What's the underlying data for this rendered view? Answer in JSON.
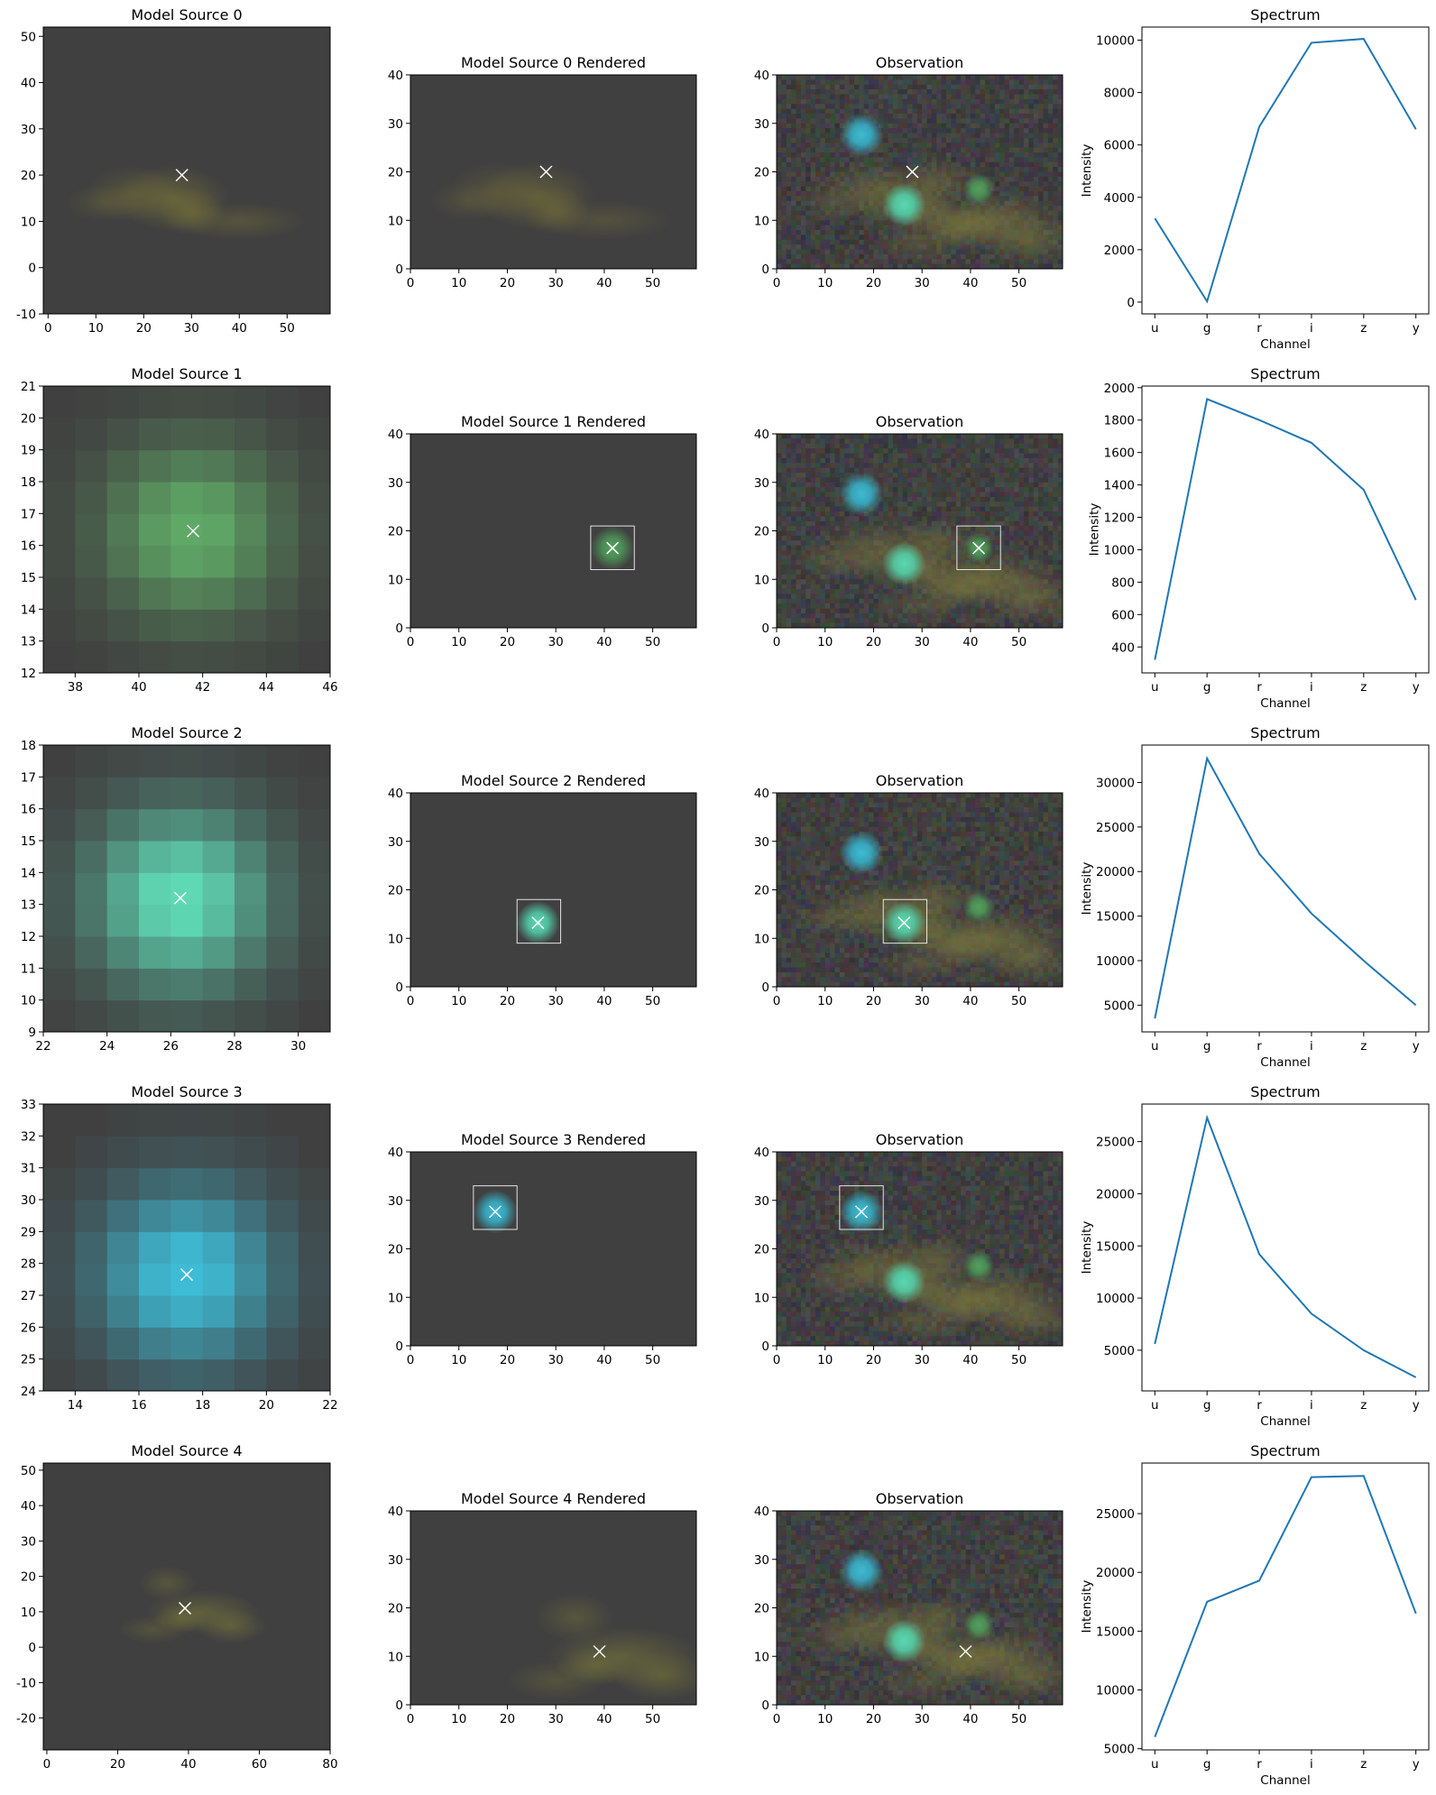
{
  "figure": {
    "background": "#ffffff",
    "image_background": "#404040",
    "marker_color": "#ffffff",
    "line_color": "#1f77b4"
  },
  "chart_data": [
    {
      "row": 0,
      "panels": [
        {
          "kind": "model",
          "type": "heatmap",
          "title": "Model Source 0",
          "xlim": [
            -1,
            59
          ],
          "ylim": [
            -10,
            52
          ],
          "xticks": [
            0,
            10,
            20,
            30,
            40,
            50
          ],
          "yticks": [
            -10,
            0,
            10,
            20,
            30,
            40,
            50
          ],
          "center": [
            28,
            20
          ],
          "color": "#807a36",
          "blob": "galaxy"
        },
        {
          "kind": "rendered",
          "type": "heatmap",
          "title": "Model Source 0 Rendered",
          "xlim": [
            0,
            59
          ],
          "ylim": [
            0,
            40
          ],
          "xticks": [
            0,
            10,
            20,
            30,
            40,
            50
          ],
          "yticks": [
            0,
            10,
            20,
            30,
            40
          ],
          "center": [
            28,
            20
          ],
          "color": "#7a7238",
          "blob": "galaxy",
          "box": null
        },
        {
          "kind": "observation",
          "type": "heatmap",
          "title": "Observation",
          "xlim": [
            0,
            59
          ],
          "ylim": [
            0,
            40
          ],
          "xticks": [
            0,
            10,
            20,
            30,
            40,
            50
          ],
          "yticks": [
            0,
            10,
            20,
            30,
            40
          ],
          "center": [
            28,
            20
          ],
          "box": null
        },
        {
          "kind": "spectrum",
          "type": "line",
          "title": "Spectrum",
          "xlabel": "Channel",
          "ylabel": "Intensity",
          "categories": [
            "u",
            "g",
            "r",
            "i",
            "z",
            "y"
          ],
          "values": [
            3200,
            30,
            6700,
            9900,
            10050,
            6600
          ],
          "ylim": [
            -450,
            10500
          ],
          "yticks": [
            0,
            2000,
            4000,
            6000,
            8000,
            10000
          ]
        }
      ]
    },
    {
      "row": 1,
      "panels": [
        {
          "kind": "model",
          "type": "heatmap",
          "title": "Model Source 1",
          "xlim": [
            37,
            46
          ],
          "ylim": [
            12,
            21
          ],
          "xticks": [
            38,
            40,
            42,
            44,
            46
          ],
          "yticks": [
            12,
            13,
            14,
            15,
            16,
            17,
            18,
            19,
            20,
            21
          ],
          "center": [
            41.7,
            16.45
          ],
          "color": "#5fa866",
          "blob": "pixels"
        },
        {
          "kind": "rendered",
          "type": "heatmap",
          "title": "Model Source 1 Rendered",
          "xlim": [
            0,
            59
          ],
          "ylim": [
            0,
            40
          ],
          "xticks": [
            0,
            10,
            20,
            30,
            40,
            50
          ],
          "yticks": [
            0,
            10,
            20,
            30,
            40
          ],
          "center": [
            41.7,
            16.45
          ],
          "color": "#4e9a58",
          "blob": "star",
          "box": [
            37.2,
            12,
            46.2,
            21
          ]
        },
        {
          "kind": "observation",
          "type": "heatmap",
          "title": "Observation",
          "xlim": [
            0,
            59
          ],
          "ylim": [
            0,
            40
          ],
          "xticks": [
            0,
            10,
            20,
            30,
            40,
            50
          ],
          "yticks": [
            0,
            10,
            20,
            30,
            40
          ],
          "center": [
            41.7,
            16.45
          ],
          "box": [
            37.2,
            12,
            46.2,
            21
          ]
        },
        {
          "kind": "spectrum",
          "type": "line",
          "title": "Spectrum",
          "xlabel": "Channel",
          "ylabel": "Intensity",
          "categories": [
            "u",
            "g",
            "r",
            "i",
            "z",
            "y"
          ],
          "values": [
            320,
            1930,
            1800,
            1660,
            1370,
            690
          ],
          "ylim": [
            240,
            2010
          ],
          "yticks": [
            400,
            600,
            800,
            1000,
            1200,
            1400,
            1600,
            1800,
            2000
          ]
        }
      ]
    },
    {
      "row": 2,
      "panels": [
        {
          "kind": "model",
          "type": "heatmap",
          "title": "Model Source 2",
          "xlim": [
            22,
            31
          ],
          "ylim": [
            9,
            18
          ],
          "xticks": [
            22,
            24,
            26,
            28,
            30
          ],
          "yticks": [
            9,
            10,
            11,
            12,
            13,
            14,
            15,
            16,
            17,
            18
          ],
          "center": [
            26.3,
            13.2
          ],
          "color": "#5fd8b4",
          "blob": "pixels"
        },
        {
          "kind": "rendered",
          "type": "heatmap",
          "title": "Model Source 2 Rendered",
          "xlim": [
            0,
            59
          ],
          "ylim": [
            0,
            40
          ],
          "xticks": [
            0,
            10,
            20,
            30,
            40,
            50
          ],
          "yticks": [
            0,
            10,
            20,
            30,
            40
          ],
          "center": [
            26.3,
            13.2
          ],
          "color": "#52d4ad",
          "blob": "star",
          "box": [
            22,
            9,
            31,
            18
          ]
        },
        {
          "kind": "observation",
          "type": "heatmap",
          "title": "Observation",
          "xlim": [
            0,
            59
          ],
          "ylim": [
            0,
            40
          ],
          "xticks": [
            0,
            10,
            20,
            30,
            40,
            50
          ],
          "yticks": [
            0,
            10,
            20,
            30,
            40
          ],
          "center": [
            26.3,
            13.2
          ],
          "box": [
            22,
            9,
            31,
            18
          ]
        },
        {
          "kind": "spectrum",
          "type": "line",
          "title": "Spectrum",
          "xlabel": "Channel",
          "ylabel": "Intensity",
          "categories": [
            "u",
            "g",
            "r",
            "i",
            "z",
            "y"
          ],
          "values": [
            3500,
            32700,
            22000,
            15300,
            10000,
            5000
          ],
          "ylim": [
            2000,
            34200
          ],
          "yticks": [
            5000,
            10000,
            15000,
            20000,
            25000,
            30000
          ]
        }
      ]
    },
    {
      "row": 3,
      "panels": [
        {
          "kind": "model",
          "type": "heatmap",
          "title": "Model Source 3",
          "xlim": [
            13,
            22
          ],
          "ylim": [
            24,
            33
          ],
          "xticks": [
            14,
            16,
            18,
            20,
            22
          ],
          "yticks": [
            24,
            25,
            26,
            27,
            28,
            29,
            30,
            31,
            32,
            33
          ],
          "center": [
            17.5,
            27.65
          ],
          "color": "#3ebcd6",
          "blob": "pixels"
        },
        {
          "kind": "rendered",
          "type": "heatmap",
          "title": "Model Source 3 Rendered",
          "xlim": [
            0,
            59
          ],
          "ylim": [
            0,
            40
          ],
          "xticks": [
            0,
            10,
            20,
            30,
            40,
            50
          ],
          "yticks": [
            0,
            10,
            20,
            30,
            40
          ],
          "center": [
            17.5,
            27.65
          ],
          "color": "#36b6cf",
          "blob": "star",
          "box": [
            13,
            24,
            22,
            33
          ]
        },
        {
          "kind": "observation",
          "type": "heatmap",
          "title": "Observation",
          "xlim": [
            0,
            59
          ],
          "ylim": [
            0,
            40
          ],
          "xticks": [
            0,
            10,
            20,
            30,
            40,
            50
          ],
          "yticks": [
            0,
            10,
            20,
            30,
            40
          ],
          "center": [
            17.5,
            27.65
          ],
          "box": [
            13,
            24,
            22,
            33
          ]
        },
        {
          "kind": "spectrum",
          "type": "line",
          "title": "Spectrum",
          "xlabel": "Channel",
          "ylabel": "Intensity",
          "categories": [
            "u",
            "g",
            "r",
            "i",
            "z",
            "y"
          ],
          "values": [
            5600,
            27300,
            14200,
            8500,
            5000,
            2400
          ],
          "ylim": [
            1100,
            28600
          ],
          "yticks": [
            5000,
            10000,
            15000,
            20000,
            25000
          ]
        }
      ]
    },
    {
      "row": 4,
      "panels": [
        {
          "kind": "model",
          "type": "heatmap",
          "title": "Model Source 4",
          "xlim": [
            -1,
            80
          ],
          "ylim": [
            -29,
            52
          ],
          "xticks": [
            0,
            20,
            40,
            60,
            80
          ],
          "yticks": [
            -20,
            -10,
            0,
            10,
            20,
            30,
            40,
            50
          ],
          "center": [
            39,
            11
          ],
          "color": "#78783a",
          "blob": "galaxy4"
        },
        {
          "kind": "rendered",
          "type": "heatmap",
          "title": "Model Source 4 Rendered",
          "xlim": [
            0,
            59
          ],
          "ylim": [
            0,
            40
          ],
          "xticks": [
            0,
            10,
            20,
            30,
            40,
            50
          ],
          "yticks": [
            0,
            10,
            20,
            30,
            40
          ],
          "center": [
            39,
            11
          ],
          "color": "#7a783a",
          "blob": "galaxy4",
          "box": null
        },
        {
          "kind": "observation",
          "type": "heatmap",
          "title": "Observation",
          "xlim": [
            0,
            59
          ],
          "ylim": [
            0,
            40
          ],
          "xticks": [
            0,
            10,
            20,
            30,
            40,
            50
          ],
          "yticks": [
            0,
            10,
            20,
            30,
            40
          ],
          "center": [
            39,
            11
          ],
          "box": null
        },
        {
          "kind": "spectrum",
          "type": "line",
          "title": "Spectrum",
          "xlabel": "Channel",
          "ylabel": "Intensity",
          "categories": [
            "u",
            "g",
            "r",
            "i",
            "z",
            "y"
          ],
          "values": [
            6000,
            17500,
            19300,
            28100,
            28200,
            16500
          ],
          "ylim": [
            4900,
            29300
          ],
          "yticks": [
            5000,
            10000,
            15000,
            20000,
            25000
          ]
        }
      ]
    }
  ]
}
